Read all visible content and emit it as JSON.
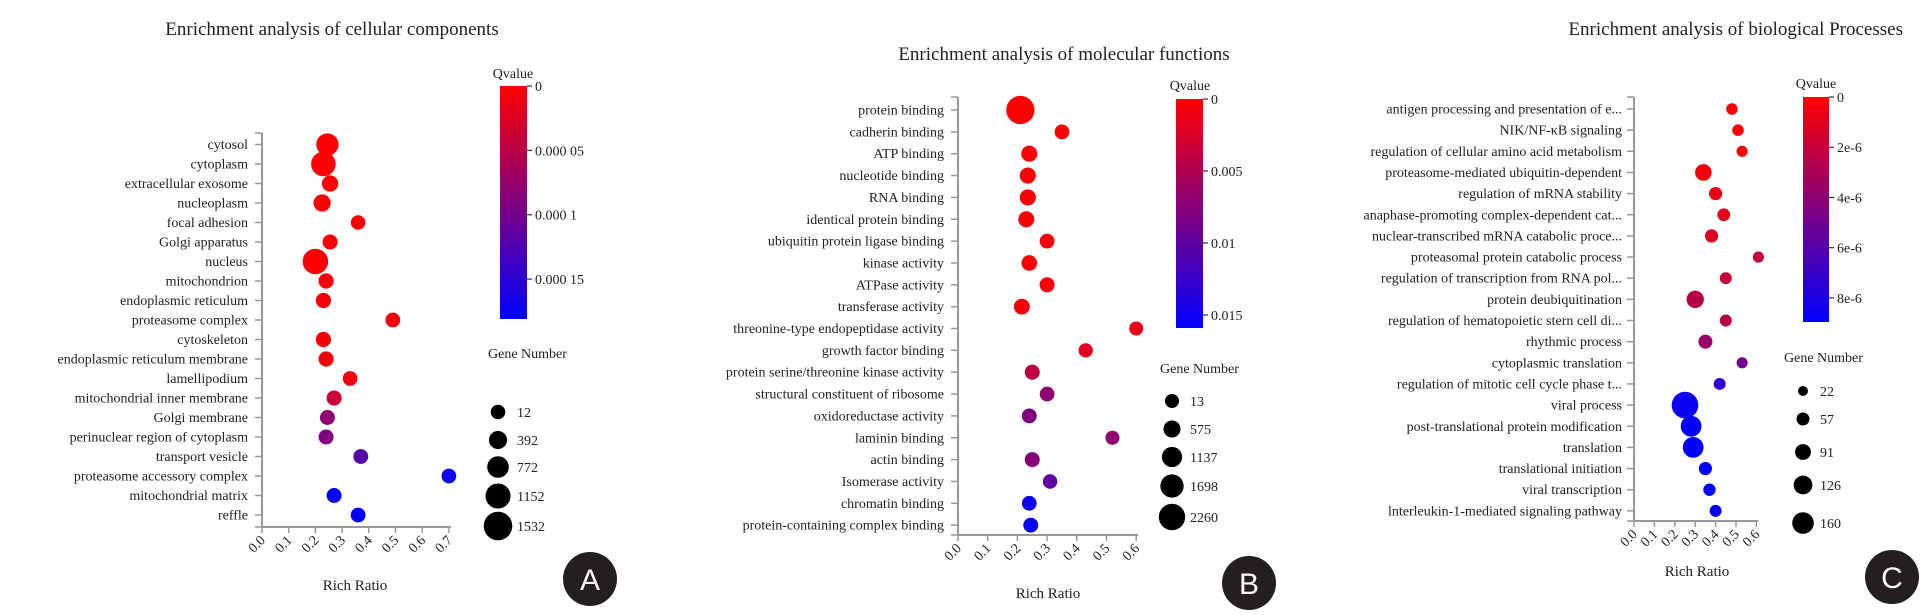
{
  "chart_data": [
    {
      "type": "scatter",
      "panel_label": "A",
      "title": "Enrichment analysis of cellular components",
      "xlabel": "Rich Ratio",
      "xlim": [
        0,
        0.7
      ],
      "xticks": [
        "0.0",
        "0.1",
        "0.2",
        "0.3",
        "0.4",
        "0.5",
        "0.6",
        "0.7"
      ],
      "color_legend": {
        "title": "Qvalue",
        "range": [
          0,
          0.000181
        ],
        "ticks": [
          0,
          5e-05,
          0.0001,
          0.00015
        ],
        "tick_labels": [
          "0",
          "0.000 05",
          "0.000 1",
          "0.000 15"
        ],
        "low_color": "#ff0000",
        "high_color": "#0000ff"
      },
      "size_legend": {
        "title": "Gene Number",
        "values": [
          12,
          392,
          772,
          1152,
          1532
        ],
        "labels": [
          "12",
          "392",
          "772",
          "1152",
          "1532"
        ]
      },
      "terms": [
        "cytosol",
        "cytoplasm",
        "extracellular exosome",
        "nucleoplasm",
        "focal adhesion",
        "Golgi apparatus",
        "nucleus",
        "mitochondrion",
        "endoplasmic reticulum",
        "proteasome complex",
        "cytoskeleton",
        "endoplasmic reticulum membrane",
        "lamellipodium",
        "mitochondrial inner membrane",
        "Golgi membrane",
        "perinuclear region of cytoplasm",
        "transport vesicle",
        "proteasome accessory complex",
        "mitochondrial matrix",
        "reffle"
      ],
      "rich_ratio": [
        0.245,
        0.23,
        0.255,
        0.225,
        0.36,
        0.255,
        0.2,
        0.24,
        0.23,
        0.49,
        0.23,
        0.24,
        0.33,
        0.27,
        0.245,
        0.24,
        0.37,
        0.7,
        0.27,
        0.36
      ],
      "qvalue": [
        1e-06,
        1e-06,
        2e-06,
        2e-06,
        3e-06,
        3e-06,
        1e-06,
        4e-06,
        4e-06,
        5e-06,
        6e-06,
        8e-06,
        1e-05,
        4e-05,
        8e-05,
        9e-05,
        0.00012,
        0.00017,
        0.00018,
        0.00018
      ],
      "gene_number": [
        850,
        1100,
        200,
        300,
        12,
        60,
        1200,
        80,
        80,
        25,
        80,
        70,
        30,
        60,
        50,
        50,
        40,
        20,
        50,
        40
      ]
    },
    {
      "type": "scatter",
      "panel_label": "B",
      "title": "Enrichment analysis of molecular functions",
      "xlabel": "Rich Ratio",
      "xlim": [
        0,
        0.6
      ],
      "xticks": [
        "0.0",
        "0.1",
        "0.2",
        "0.3",
        "0.4",
        "0.5",
        "0.6"
      ],
      "color_legend": {
        "title": "Qvalue",
        "range": [
          0,
          0.0159
        ],
        "ticks": [
          0,
          0.005,
          0.01,
          0.015
        ],
        "tick_labels": [
          "0",
          "0.005",
          "0.01",
          "0.015"
        ],
        "low_color": "#ff0000",
        "high_color": "#0000ff"
      },
      "size_legend": {
        "title": "Gene Number",
        "values": [
          13,
          575,
          1137,
          1698,
          2260
        ],
        "labels": [
          "13",
          "575",
          "1137",
          "1698",
          "2260"
        ]
      },
      "terms": [
        "protein binding",
        "cadherin binding",
        "ATP binding",
        "nucleotide binding",
        "RNA binding",
        "identical protein binding",
        "ubiquitin protein ligase binding",
        "kinase activity",
        "ATPase activity",
        "transferase activity",
        "threonine-type endopeptidase activity",
        "growth factor binding",
        "protein serine/threonine kinase activity",
        "structural constituent of ribosome",
        "oxidoreductase activity",
        "laminin binding",
        "actin binding",
        "Isomerase activity",
        "chromatin binding",
        "protein-containing complex binding"
      ],
      "rich_ratio": [
        0.21,
        0.35,
        0.24,
        0.235,
        0.235,
        0.23,
        0.3,
        0.24,
        0.3,
        0.215,
        0.6,
        0.43,
        0.25,
        0.3,
        0.24,
        0.52,
        0.25,
        0.31,
        0.24,
        0.245
      ],
      "qvalue": [
        0.0001,
        0.0002,
        0.0002,
        0.0002,
        0.0003,
        0.0003,
        0.0004,
        0.0004,
        0.0005,
        0.0005,
        0.0015,
        0.002,
        0.004,
        0.007,
        0.008,
        0.007,
        0.0075,
        0.01,
        0.015,
        0.0155
      ],
      "gene_number": [
        2600,
        150,
        400,
        380,
        400,
        380,
        150,
        300,
        200,
        350,
        20,
        60,
        200,
        150,
        180,
        20,
        200,
        100,
        150,
        180
      ]
    },
    {
      "type": "scatter",
      "panel_label": "C",
      "title": "Enrichment analysis of biological Processes",
      "xlabel": "Rich Ratio",
      "xlim": [
        0,
        0.6
      ],
      "xticks": [
        "0.0",
        "0.1",
        "0.2",
        "0.3",
        "0.4",
        "0.5",
        "0.6"
      ],
      "color_legend": {
        "title": "Qvalue",
        "range": [
          0,
          8.96e-06
        ],
        "ticks": [
          0,
          2e-06,
          4e-06,
          6e-06,
          8e-06
        ],
        "tick_labels": [
          "0",
          "2e-6",
          "4e-6",
          "6e-6",
          "8e-6"
        ],
        "low_color": "#ff0000",
        "high_color": "#0000ff"
      },
      "size_legend": {
        "title": "Gene Number",
        "values": [
          22,
          57,
          91,
          126,
          160
        ],
        "labels": [
          "22",
          "57",
          "91",
          "126",
          "160"
        ]
      },
      "terms": [
        "antigen processing and presentation of e...",
        "NIK/NF-κB signaling",
        "regulation of cellular amino acid metabolism",
        "proteasome-mediated ubiquitin-dependent",
        "regulation of mRNA stability",
        "anaphase-promoting complex-dependent cat...",
        "nuclear-transcribed mRNA catabolic proce...",
        "proteasomal protein catabolic process",
        "regulation of transcription from RNA pol...",
        "protein deubiquitination",
        "regulation of hematopoietic stern cell di...",
        "rhythmic process",
        "cytoplasmic translation",
        "regulation of mitotic cell cycle phase t...",
        "viral process",
        "post-translational protein modification",
        "translation",
        "translational initiation",
        "viral transcription",
        "lnterleukin-1-mediated signaling pathway"
      ],
      "rich_ratio": [
        0.48,
        0.51,
        0.53,
        0.34,
        0.4,
        0.44,
        0.38,
        0.61,
        0.45,
        0.3,
        0.45,
        0.35,
        0.53,
        0.42,
        0.25,
        0.28,
        0.29,
        0.35,
        0.37,
        0.4
      ],
      "qvalue": [
        1e-07,
        1e-07,
        1e-07,
        5e-07,
        8e-07,
        1e-06,
        1.2e-06,
        2e-06,
        2e-06,
        2.5e-06,
        2.5e-06,
        3.5e-06,
        5e-06,
        7.5e-06,
        8.5e-06,
        8.9e-06,
        8.9e-06,
        8.9e-06,
        8.9e-06,
        8.9e-06
      ],
      "gene_number": [
        40,
        40,
        35,
        100,
        60,
        55,
        60,
        35,
        45,
        110,
        45,
        70,
        35,
        45,
        220,
        150,
        150,
        60,
        50,
        45
      ]
    }
  ]
}
